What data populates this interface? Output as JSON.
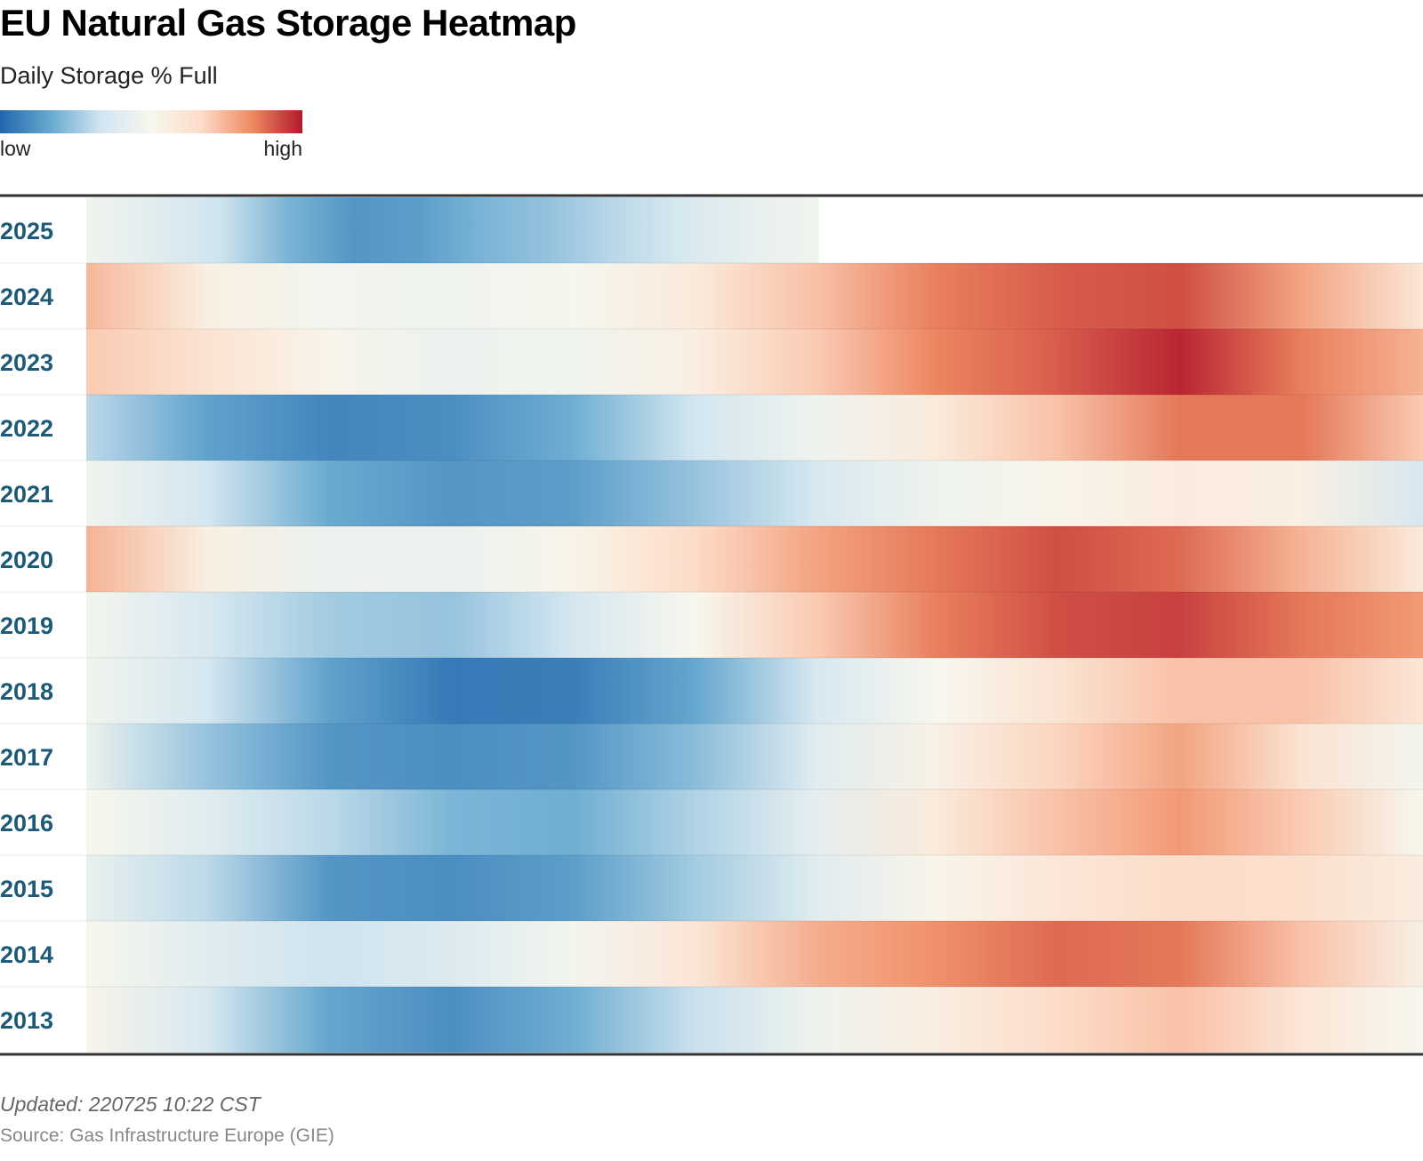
{
  "header": {
    "title": "EU Natural Gas Storage Heatmap",
    "subtitle": "Daily Storage % Full"
  },
  "legend": {
    "low_label": "low",
    "high_label": "high",
    "colors": [
      "#2166ac",
      "#67a9cf",
      "#d1e5f0",
      "#f7f7ee",
      "#fddbc7",
      "#ef8a62",
      "#b2182b"
    ]
  },
  "chart_data": {
    "type": "heatmap",
    "title": "EU Natural Gas Storage Heatmap",
    "subtitle": "Daily Storage % Full",
    "y_categories": [
      "2025",
      "2024",
      "2023",
      "2022",
      "2021",
      "2020",
      "2019",
      "2018",
      "2017",
      "2016",
      "2015",
      "2014",
      "2013"
    ],
    "x_domain": [
      "Jan 1",
      "Dec 31"
    ],
    "value_scale": [
      "low",
      "high"
    ],
    "series": [
      {
        "year": "2025",
        "coverage": 0.548,
        "values": [
          0.47,
          0.41,
          0.33,
          0.2,
          0.12,
          0.14,
          0.2,
          0.24,
          0.3,
          0.37,
          0.43,
          0.47
        ]
      },
      {
        "year": "2024",
        "coverage": 1.0,
        "values": [
          0.74,
          0.55,
          0.48,
          0.47,
          0.49,
          0.58,
          0.72,
          0.85,
          0.9,
          0.92,
          0.78,
          0.6
        ]
      },
      {
        "year": "2023",
        "coverage": 1.0,
        "values": [
          0.7,
          0.62,
          0.52,
          0.45,
          0.47,
          0.55,
          0.7,
          0.84,
          0.9,
          0.98,
          0.85,
          0.75
        ]
      },
      {
        "year": "2022",
        "coverage": 1.0,
        "values": [
          0.3,
          0.15,
          0.08,
          0.1,
          0.18,
          0.34,
          0.46,
          0.58,
          0.72,
          0.86,
          0.86,
          0.7
        ]
      },
      {
        "year": "2021",
        "coverage": 1.0,
        "values": [
          0.47,
          0.34,
          0.17,
          0.12,
          0.14,
          0.24,
          0.36,
          0.46,
          0.52,
          0.57,
          0.55,
          0.36
        ]
      },
      {
        "year": "2020",
        "coverage": 1.0,
        "values": [
          0.75,
          0.55,
          0.45,
          0.45,
          0.52,
          0.66,
          0.78,
          0.86,
          0.92,
          0.88,
          0.75,
          0.58
        ]
      },
      {
        "year": "2019",
        "coverage": 1.0,
        "values": [
          0.48,
          0.36,
          0.26,
          0.24,
          0.35,
          0.5,
          0.7,
          0.85,
          0.92,
          0.94,
          0.86,
          0.8
        ]
      },
      {
        "year": "2018",
        "coverage": 1.0,
        "values": [
          0.47,
          0.35,
          0.15,
          0.05,
          0.06,
          0.16,
          0.36,
          0.5,
          0.62,
          0.72,
          0.72,
          0.6
        ]
      },
      {
        "year": "2017",
        "coverage": 1.0,
        "values": [
          0.45,
          0.24,
          0.12,
          0.1,
          0.12,
          0.22,
          0.4,
          0.54,
          0.68,
          0.78,
          0.62,
          0.48
        ]
      },
      {
        "year": "2016",
        "coverage": 1.0,
        "values": [
          0.5,
          0.4,
          0.3,
          0.2,
          0.18,
          0.28,
          0.42,
          0.58,
          0.72,
          0.8,
          0.7,
          0.5
        ]
      },
      {
        "year": "2015",
        "coverage": 1.0,
        "values": [
          0.44,
          0.3,
          0.12,
          0.1,
          0.14,
          0.26,
          0.4,
          0.52,
          0.6,
          0.66,
          0.64,
          0.56
        ]
      },
      {
        "year": "2014",
        "coverage": 1.0,
        "values": [
          0.5,
          0.4,
          0.33,
          0.38,
          0.48,
          0.6,
          0.76,
          0.82,
          0.88,
          0.86,
          0.72,
          0.54
        ]
      },
      {
        "year": "2013",
        "coverage": 1.0,
        "values": [
          0.52,
          0.36,
          0.16,
          0.1,
          0.18,
          0.32,
          0.46,
          0.56,
          0.66,
          0.72,
          0.6,
          0.5
        ]
      }
    ]
  },
  "footer": {
    "updated": "Updated: 220725 10:22 CST",
    "source": "Source: Gas Infrastructure Europe (GIE)"
  }
}
